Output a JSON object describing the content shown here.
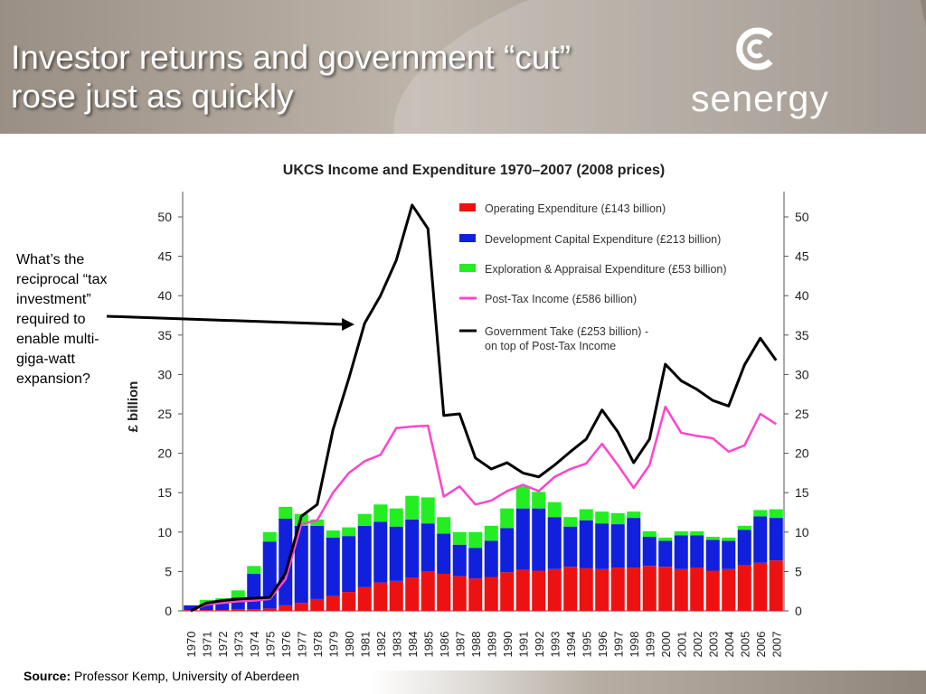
{
  "slide": {
    "title_line1": "Investor returns and government “cut”",
    "title_line2": "rose just as quickly",
    "logo_text": "senergy",
    "annotation_lines": [
      "What’s the",
      "reciprocal “tax",
      "investment”",
      "required to",
      "enable multi-",
      "giga-watt",
      "expansion?"
    ],
    "source_label": "Source:",
    "source_text": "Professor Kemp, University of Aberdeen"
  },
  "colors": {
    "opex": "#ee1111",
    "devcap": "#1020dd",
    "explore": "#22ee22",
    "posttax": "#ff44cc",
    "govtake": "#000000"
  },
  "chart_data": {
    "type": "bar",
    "stacked": true,
    "title": "UKCS Income and Expenditure 1970–2007  (2008 prices)",
    "ylabel": "£ billion",
    "ylim": [
      0,
      52
    ],
    "yticks": [
      0,
      5,
      10,
      15,
      20,
      25,
      30,
      35,
      40,
      45,
      50
    ],
    "categories": [
      "1970",
      "1971",
      "1972",
      "1973",
      "1974",
      "1975",
      "1976",
      "1977",
      "1978",
      "1979",
      "1980",
      "1981",
      "1982",
      "1983",
      "1984",
      "1985",
      "1986",
      "1987",
      "1988",
      "1989",
      "1990",
      "1991",
      "1992",
      "1993",
      "1994",
      "1995",
      "1996",
      "1997",
      "1998",
      "1999",
      "2000",
      "2001",
      "2002",
      "2003",
      "2004",
      "2005",
      "2006",
      "2007"
    ],
    "series": [
      {
        "name": "Operating Expenditure (£143 billion)",
        "kind": "bar",
        "color_key": "opex",
        "values": [
          0.1,
          0.1,
          0.1,
          0.2,
          0.2,
          0.3,
          0.7,
          1.0,
          1.5,
          1.9,
          2.4,
          3.0,
          3.6,
          3.8,
          4.2,
          5.0,
          4.7,
          4.4,
          4.1,
          4.3,
          4.9,
          5.2,
          5.1,
          5.3,
          5.6,
          5.4,
          5.3,
          5.5,
          5.5,
          5.7,
          5.6,
          5.3,
          5.5,
          5.1,
          5.3,
          5.8,
          6.1,
          6.4
        ]
      },
      {
        "name": "Development Capital Expenditure (£213 billion)",
        "kind": "bar",
        "color_key": "devcap",
        "values": [
          0.6,
          0.7,
          0.9,
          1.5,
          4.5,
          8.5,
          11.0,
          9.8,
          9.3,
          7.4,
          7.1,
          7.8,
          7.7,
          6.9,
          7.4,
          6.1,
          5.1,
          4.0,
          3.9,
          4.6,
          5.6,
          7.8,
          7.9,
          6.6,
          5.1,
          6.1,
          5.8,
          5.5,
          6.3,
          3.7,
          3.3,
          4.3,
          4.1,
          3.9,
          3.6,
          4.5,
          5.9,
          5.4
        ]
      },
      {
        "name": "Exploration & Appraisal Expenditure (£53 billion)",
        "kind": "bar",
        "color_key": "explore",
        "values": [
          0.0,
          0.6,
          0.6,
          0.9,
          1.0,
          1.2,
          1.5,
          1.5,
          0.8,
          0.9,
          1.1,
          1.5,
          2.2,
          2.3,
          3.0,
          3.3,
          2.1,
          1.6,
          2.0,
          1.9,
          2.5,
          2.8,
          2.1,
          1.9,
          1.2,
          1.4,
          1.5,
          1.4,
          0.8,
          0.7,
          0.4,
          0.5,
          0.5,
          0.4,
          0.4,
          0.5,
          0.8,
          1.1
        ]
      },
      {
        "name": "Post-Tax Income (£586 billion)",
        "kind": "line",
        "color_key": "posttax",
        "values": [
          0.0,
          0.8,
          1.0,
          1.2,
          1.3,
          1.5,
          4.0,
          11.0,
          11.5,
          15.0,
          17.5,
          19.0,
          19.8,
          23.2,
          23.4,
          23.5,
          14.5,
          15.8,
          13.5,
          14.0,
          15.2,
          16.0,
          15.2,
          17.0,
          18.0,
          18.7,
          21.2,
          18.5,
          15.6,
          18.5,
          25.9,
          22.6,
          22.2,
          21.9,
          20.2,
          21.0,
          25.0,
          23.7
        ]
      },
      {
        "name": "Government Take (£253 billion) - on top of Post-Tax Income",
        "kind": "line",
        "color_key": "govtake",
        "values": [
          0.0,
          1.0,
          1.3,
          1.5,
          1.6,
          1.7,
          4.8,
          12.0,
          13.5,
          23.0,
          29.5,
          36.5,
          40.0,
          44.5,
          51.5,
          48.5,
          24.8,
          25.0,
          19.4,
          18.0,
          18.8,
          17.5,
          17.0,
          18.5,
          20.2,
          21.8,
          25.5,
          22.7,
          18.8,
          21.8,
          31.3,
          29.2,
          28.1,
          26.7,
          26.0,
          31.2,
          34.6,
          31.8
        ]
      }
    ],
    "legend_position": "top-right, inside plot",
    "grid": false,
    "mirrored_right_axis": true
  }
}
